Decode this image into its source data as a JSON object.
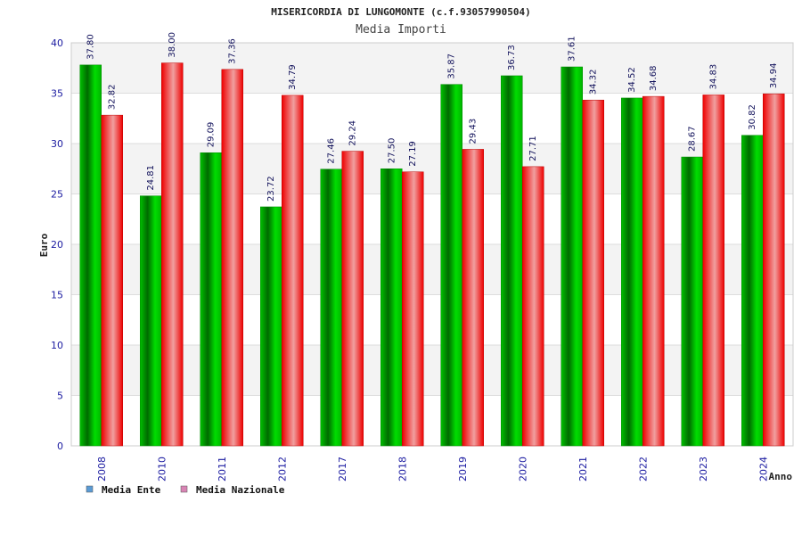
{
  "chart_data": {
    "type": "bar",
    "title": "MISERICORDIA DI LUNGOMONTE (c.f.93057990504)",
    "subtitle": "Media Importi",
    "ylabel": "Euro",
    "xlabel": "Anno",
    "ylim": [
      0,
      40
    ],
    "yticks": [
      0,
      5,
      10,
      15,
      20,
      25,
      30,
      35,
      40
    ],
    "grid": true,
    "legend_position": "bottom-left",
    "categories": [
      "2008",
      "2010",
      "2011",
      "2012",
      "2017",
      "2018",
      "2019",
      "2020",
      "2021",
      "2022",
      "2023",
      "2024"
    ],
    "series": [
      {
        "name": "Media Ente",
        "color": "#00cc00",
        "legend_color": "#5b9bd5",
        "values": [
          37.8,
          24.81,
          29.09,
          23.72,
          27.46,
          27.5,
          35.87,
          36.73,
          37.61,
          34.52,
          28.67,
          30.82
        ],
        "labels": [
          "37.80",
          "24.81",
          "29.09",
          "23.72",
          "27.46",
          "27.50",
          "35.87",
          "36.73",
          "37.61",
          "34.52",
          "28.67",
          "30.82"
        ]
      },
      {
        "name": "Media Nazionale",
        "color": "#ee1111",
        "legend_color": "#d884b4",
        "values": [
          32.82,
          38.0,
          37.36,
          34.79,
          29.24,
          27.19,
          29.43,
          27.71,
          34.32,
          34.68,
          34.83,
          34.94
        ],
        "labels": [
          "32.82",
          "38.00",
          "37.36",
          "34.79",
          "29.24",
          "27.19",
          "29.43",
          "27.71",
          "34.32",
          "34.68",
          "34.83",
          "34.94"
        ]
      }
    ]
  }
}
